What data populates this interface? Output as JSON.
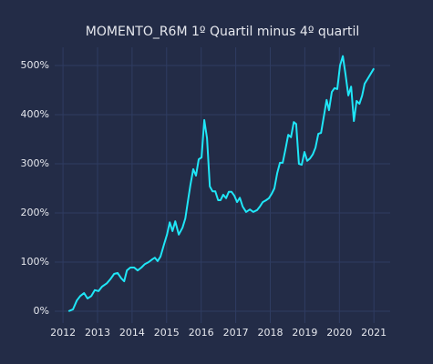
{
  "chart_data": {
    "type": "line",
    "title": "MOMENTO_R6M 1º Quartil minus 4º quartil",
    "x": [
      2012.16,
      2012.29,
      2012.4,
      2012.5,
      2012.61,
      2012.71,
      2012.82,
      2012.92,
      2013.03,
      2013.13,
      2013.27,
      2013.37,
      2013.48,
      2013.58,
      2013.69,
      2013.77,
      2013.85,
      2013.95,
      2014.06,
      2014.16,
      2014.27,
      2014.37,
      2014.48,
      2014.59,
      2014.66,
      2014.74,
      2014.82,
      2014.93,
      2015.01,
      2015.09,
      2015.17,
      2015.25,
      2015.35,
      2015.46,
      2015.54,
      2015.62,
      2015.69,
      2015.77,
      2015.85,
      2015.93,
      2016.01,
      2016.09,
      2016.17,
      2016.25,
      2016.33,
      2016.41,
      2016.49,
      2016.56,
      2016.64,
      2016.72,
      2016.8,
      2016.88,
      2016.96,
      2017.04,
      2017.12,
      2017.2,
      2017.3,
      2017.41,
      2017.51,
      2017.62,
      2017.7,
      2017.78,
      2017.88,
      2017.96,
      2018.04,
      2018.12,
      2018.2,
      2018.28,
      2018.36,
      2018.44,
      2018.52,
      2018.6,
      2018.68,
      2018.75,
      2018.83,
      2018.91,
      2018.99,
      2019.07,
      2019.15,
      2019.23,
      2019.31,
      2019.39,
      2019.47,
      2019.55,
      2019.63,
      2019.7,
      2019.78,
      2019.86,
      2019.94,
      2020.02,
      2020.1,
      2020.18,
      2020.26,
      2020.34,
      2020.42,
      2020.5,
      2020.58,
      2020.66,
      2020.73,
      2020.81,
      2020.89,
      2021.0
    ],
    "series": [
      {
        "name": "MOMENTO_R6M",
        "color": "#1fe6f7",
        "values": [
          0,
          4,
          22,
          31,
          37,
          26,
          31,
          43,
          41,
          50,
          57,
          65,
          76,
          78,
          67,
          61,
          83,
          89,
          89,
          83,
          89,
          96,
          100,
          106,
          109,
          102,
          111,
          137,
          156,
          181,
          163,
          183,
          156,
          170,
          189,
          226,
          257,
          289,
          276,
          309,
          313,
          389,
          352,
          254,
          244,
          244,
          226,
          226,
          237,
          230,
          243,
          243,
          235,
          222,
          231,
          213,
          202,
          207,
          202,
          206,
          213,
          222,
          226,
          230,
          239,
          250,
          281,
          302,
          302,
          330,
          359,
          354,
          385,
          381,
          300,
          298,
          324,
          306,
          311,
          319,
          333,
          361,
          363,
          396,
          430,
          409,
          446,
          454,
          452,
          500,
          519,
          481,
          439,
          457,
          387,
          428,
          422,
          439,
          463,
          472,
          481,
          494
        ]
      }
    ],
    "xlim": [
      2011.76,
      2021.47
    ],
    "xticks": [
      2012,
      2013,
      2014,
      2015,
      2016,
      2017,
      2018,
      2019,
      2020,
      2021
    ],
    "ylim": [
      -24,
      537
    ],
    "yticks": [
      {
        "value": 0,
        "label": "0%"
      },
      {
        "value": 100,
        "label": "100%"
      },
      {
        "value": 200,
        "label": "200%"
      },
      {
        "value": 300,
        "label": "300%"
      },
      {
        "value": 400,
        "label": "400%"
      },
      {
        "value": 500,
        "label": "500%"
      }
    ],
    "grid": true
  }
}
